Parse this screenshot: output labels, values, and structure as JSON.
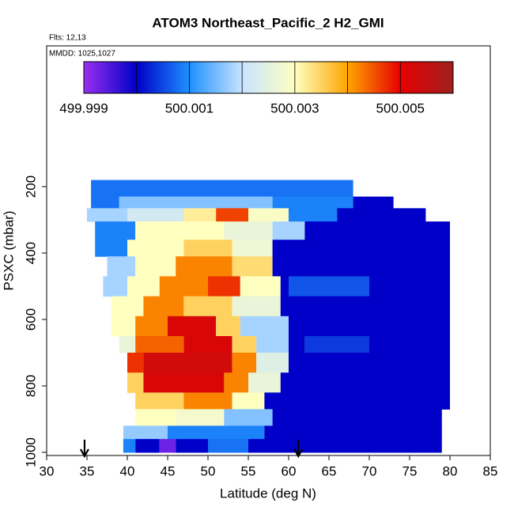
{
  "chart_data": {
    "type": "heatmap",
    "title": "ATOM3 Northeast_Pacific_2 H2_GMI",
    "subtitle": "Flts: 12,13",
    "annotation": "MMDD: 1025,1027",
    "xlabel": "Latitude (deg N)",
    "ylabel": "PSXC (mbar)",
    "xlim": [
      30,
      85
    ],
    "xticks": [
      30,
      35,
      40,
      45,
      50,
      55,
      60,
      65,
      70,
      75,
      80,
      85
    ],
    "ylim": [
      1009.5,
      -223.8
    ],
    "yticks": [
      200,
      400,
      600,
      800,
      1000
    ],
    "colorbar_lim": [
      499.999,
      500.006
    ],
    "colorbar_ticks": [
      499.999,
      500.001,
      500.003,
      500.005
    ],
    "colorbar_breaks": [
      500,
      500.001,
      500.002,
      500.003,
      500.004,
      500.005
    ],
    "colors": [
      "#9a30f0",
      "#0000c8",
      "#1e90ff",
      "#c8e4ff",
      "#ffffc0",
      "#ffa500",
      "#e60000",
      "#a02020"
    ],
    "arrows_lat": [
      34.7,
      61.2
    ],
    "rows": [
      {
        "p": [
          180,
          230
        ],
        "cells": [
          [
            35.5,
            68,
            500.0008
          ]
        ]
      },
      {
        "p": [
          230,
          265
        ],
        "cells": [
          [
            35.5,
            39,
            500.0008
          ],
          [
            39,
            58,
            500.0016
          ],
          [
            58,
            68,
            500.0009
          ],
          [
            68,
            73,
            500
          ]
        ]
      },
      {
        "p": [
          265,
          305
        ],
        "cells": [
          [
            35,
            40,
            500.0018
          ],
          [
            40,
            47,
            500.0022
          ],
          [
            47,
            51,
            500.0032
          ],
          [
            51,
            55,
            500.0046
          ],
          [
            55,
            60,
            500.0029
          ],
          [
            60,
            66,
            500.0009
          ],
          [
            66,
            77,
            500
          ]
        ]
      },
      {
        "p": [
          305,
          360
        ],
        "cells": [
          [
            36,
            41,
            500.0009
          ],
          [
            41,
            52,
            500.003
          ],
          [
            52,
            58,
            500.0026
          ],
          [
            58,
            62,
            500.0018
          ],
          [
            62,
            80,
            500
          ]
        ]
      },
      {
        "p": [
          360,
          410
        ],
        "cells": [
          [
            36,
            40,
            500.0009
          ],
          [
            40,
            47,
            500.003
          ],
          [
            47,
            53,
            500.0035
          ],
          [
            53,
            58,
            500.0027
          ],
          [
            58,
            80,
            500
          ]
        ]
      },
      {
        "p": [
          410,
          470
        ],
        "cells": [
          [
            37.5,
            41,
            500.0018
          ],
          [
            41,
            46,
            500.003
          ],
          [
            46,
            53,
            500.0042
          ],
          [
            53,
            58,
            500.0034
          ],
          [
            58,
            80,
            500
          ]
        ]
      },
      {
        "p": [
          470,
          530
        ],
        "cells": [
          [
            37,
            40,
            500.0018
          ],
          [
            40,
            44,
            500.003
          ],
          [
            44,
            50,
            500.0042
          ],
          [
            50,
            54,
            500.0047
          ],
          [
            54,
            59,
            500.003
          ],
          [
            59,
            60,
            500
          ],
          [
            60,
            70,
            500.0006
          ],
          [
            70,
            80,
            500
          ]
        ]
      },
      {
        "p": [
          530,
          590
        ],
        "cells": [
          [
            38,
            42,
            500.003
          ],
          [
            42,
            47,
            500.0042
          ],
          [
            47,
            53,
            500.0035
          ],
          [
            53,
            59,
            500.0026
          ],
          [
            59,
            80,
            500
          ]
        ]
      },
      {
        "p": [
          590,
          650
        ],
        "cells": [
          [
            38,
            41,
            500.003
          ],
          [
            41,
            45,
            500.0042
          ],
          [
            45,
            51,
            500.0052
          ],
          [
            51,
            54,
            500.0035
          ],
          [
            54,
            60,
            500.0018
          ],
          [
            60,
            80,
            500
          ]
        ]
      },
      {
        "p": [
          650,
          700
        ],
        "cells": [
          [
            39,
            41,
            500.0026
          ],
          [
            41,
            47,
            500.0044
          ],
          [
            47,
            53,
            500.0052
          ],
          [
            53,
            56,
            500.0035
          ],
          [
            56,
            60,
            500.0018
          ],
          [
            60,
            62,
            500
          ],
          [
            62,
            70,
            500.0004
          ],
          [
            70,
            80,
            500
          ]
        ]
      },
      {
        "p": [
          700,
          760
        ],
        "cells": [
          [
            40,
            42,
            500.0047
          ],
          [
            42,
            53,
            500.0053
          ],
          [
            53,
            56,
            500.0042
          ],
          [
            56,
            60,
            500.0024
          ],
          [
            60,
            80,
            500
          ]
        ]
      },
      {
        "p": [
          760,
          820
        ],
        "cells": [
          [
            40,
            42,
            500.0035
          ],
          [
            42,
            52,
            500.0052
          ],
          [
            52,
            55,
            500.0042
          ],
          [
            55,
            59,
            500.0026
          ],
          [
            59,
            80,
            500
          ]
        ]
      },
      {
        "p": [
          820,
          870
        ],
        "cells": [
          [
            41,
            47,
            500.0035
          ],
          [
            47,
            53,
            500.0042
          ],
          [
            53,
            57,
            500.003
          ],
          [
            57,
            80,
            500
          ]
        ]
      },
      {
        "p": [
          870,
          920
        ],
        "cells": [
          [
            41,
            46,
            500.003
          ],
          [
            46,
            52,
            500.0028
          ],
          [
            52,
            58,
            500.0016
          ],
          [
            58,
            79,
            500
          ]
        ]
      },
      {
        "p": [
          920,
          960
        ],
        "cells": [
          [
            39.5,
            45,
            500.0017
          ],
          [
            45,
            57,
            500.0009
          ],
          [
            57,
            79,
            500
          ]
        ]
      },
      {
        "p": [
          960,
          1000
        ],
        "cells": [
          [
            39.5,
            41,
            500.0009
          ],
          [
            41,
            44,
            500
          ],
          [
            44,
            46,
            499.9993
          ],
          [
            46,
            50,
            500
          ],
          [
            50,
            55,
            500.0008
          ],
          [
            55,
            79,
            500
          ]
        ]
      }
    ]
  }
}
